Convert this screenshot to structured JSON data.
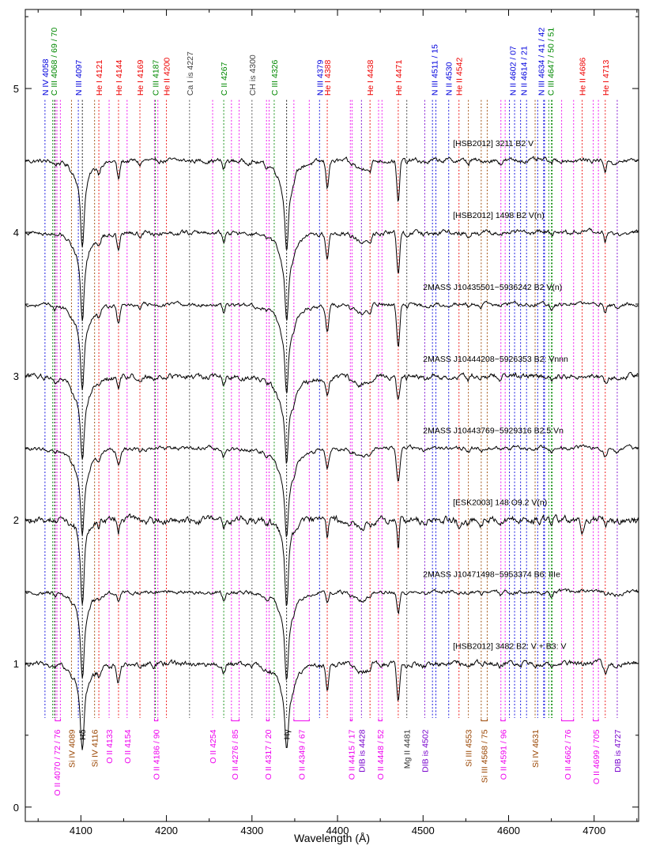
{
  "chart_data": {
    "type": "line",
    "title": "",
    "xlabel": "Wavelength (Å)",
    "ylabel": "",
    "xlim": [
      4035,
      4752
    ],
    "ylim": [
      -0.1,
      5.55
    ],
    "x_ticks": [
      4100,
      4200,
      4300,
      4400,
      4500,
      4600,
      4700
    ],
    "y_ticks": [
      0,
      1,
      2,
      3,
      4,
      5
    ],
    "grid": false,
    "colors": {
      "N": "#0000dd",
      "C": "#008800",
      "He": "#ee0000",
      "OII": "#ee00ee",
      "Si": "#994400",
      "Mg": "#333333",
      "DIB": "#7700cc",
      "other": "#444444",
      "H": "#000000",
      "spectrum": "#000000"
    },
    "top_lines": [
      {
        "label": "N IV 4058",
        "x": 4058,
        "el": "N"
      },
      {
        "label": "C III 4068 / 69 / 70",
        "x": 4068.5,
        "el": "C",
        "marks": [
          4067,
          4069,
          4070
        ]
      },
      {
        "label": "N III 4097",
        "x": 4097,
        "el": "N"
      },
      {
        "label": "He I 4121",
        "x": 4121,
        "el": "He"
      },
      {
        "label": "He I 4144",
        "x": 4144,
        "el": "He"
      },
      {
        "label": "He I 4169",
        "x": 4169,
        "el": "He"
      },
      {
        "label": "C III 4187",
        "x": 4187,
        "el": "C"
      },
      {
        "label": "He II 4200",
        "x": 4200,
        "el": "He"
      },
      {
        "label": "Ca I is 4227",
        "x": 4227,
        "el": "other"
      },
      {
        "label": "C II 4267",
        "x": 4267,
        "el": "C"
      },
      {
        "label": "CH is 4300",
        "x": 4300,
        "el": "other"
      },
      {
        "label": "C III 4326",
        "x": 4326,
        "el": "C"
      },
      {
        "label": "N III 4379",
        "x": 4379,
        "el": "N"
      },
      {
        "label": "He I 4388",
        "x": 4388,
        "el": "He"
      },
      {
        "label": "He I 4438",
        "x": 4438,
        "el": "He"
      },
      {
        "label": "He I 4471",
        "x": 4471,
        "el": "He"
      },
      {
        "label": "N III 4511 / 15",
        "x": 4513,
        "el": "N",
        "marks": [
          4511,
          4515
        ]
      },
      {
        "label": "N II 4530",
        "x": 4530,
        "el": "N"
      },
      {
        "label": "He II 4542",
        "x": 4542,
        "el": "He"
      },
      {
        "label": "N II 4602 / 07",
        "x": 4604.5,
        "el": "N",
        "marks": [
          4601,
          4607
        ]
      },
      {
        "label": "N II 4614 / 21",
        "x": 4617.5,
        "el": "N",
        "marks": [
          4614,
          4621
        ]
      },
      {
        "label": "N III 4634 / 41 / 42",
        "x": 4638,
        "el": "N",
        "marks": [
          4634,
          4641,
          4642
        ]
      },
      {
        "label": "C III 4647 / 50 / 51",
        "x": 4649,
        "el": "C",
        "marks": [
          4647,
          4650,
          4651
        ]
      },
      {
        "label": "He II 4686",
        "x": 4686,
        "el": "He"
      },
      {
        "label": "He I 4713",
        "x": 4713,
        "el": "He"
      }
    ],
    "bottom_lines": [
      {
        "label": "O II 4070 / 72 / 76",
        "x": 4072,
        "el": "OII",
        "marks": [
          4070,
          4072,
          4076
        ]
      },
      {
        "label": "Si IV 4089",
        "x": 4089,
        "el": "Si"
      },
      {
        "label": "Hδ",
        "x": 4101.7,
        "el": "H"
      },
      {
        "label": "Si IV 4116",
        "x": 4116,
        "el": "Si"
      },
      {
        "label": "O II 4133",
        "x": 4133,
        "el": "OII"
      },
      {
        "label": "O II 4154",
        "x": 4154,
        "el": "OII"
      },
      {
        "label": "O II 4186 / 90",
        "x": 4188,
        "el": "OII",
        "marks": [
          4186,
          4190
        ]
      },
      {
        "label": "O II 4254",
        "x": 4254,
        "el": "OII"
      },
      {
        "label": "O II 4276 / 85",
        "x": 4280,
        "el": "OII",
        "marks": [
          4276,
          4285
        ]
      },
      {
        "label": "O II 4317 / 20",
        "x": 4318.5,
        "el": "OII",
        "marks": [
          4317,
          4320
        ]
      },
      {
        "label": "Hγ",
        "x": 4340.5,
        "el": "H"
      },
      {
        "label": "O II 4349 / 67",
        "x": 4358,
        "el": "OII",
        "marks": [
          4349,
          4367
        ]
      },
      {
        "label": "O II 4415 / 17",
        "x": 4416,
        "el": "OII",
        "marks": [
          4415,
          4417
        ]
      },
      {
        "label": "DIB is 4428",
        "x": 4428,
        "el": "DIB"
      },
      {
        "label": "O II 4448 / 52",
        "x": 4450,
        "el": "OII",
        "marks": [
          4448,
          4452
        ]
      },
      {
        "label": "Mg II 4481",
        "x": 4481,
        "el": "Mg"
      },
      {
        "label": "DIB is 4502",
        "x": 4502,
        "el": "DIB"
      },
      {
        "label": "Si III 4553",
        "x": 4553,
        "el": "Si"
      },
      {
        "label": "Si III 4568 / 75",
        "x": 4571.5,
        "el": "Si",
        "marks": [
          4568,
          4575
        ]
      },
      {
        "label": "O II 4591 / 96",
        "x": 4593.5,
        "el": "OII",
        "marks": [
          4591,
          4596
        ]
      },
      {
        "label": "Si IV 4631",
        "x": 4631,
        "el": "Si"
      },
      {
        "label": "O II 4662 / 76",
        "x": 4669,
        "el": "OII",
        "marks": [
          4662,
          4676
        ]
      },
      {
        "label": "O II 4699 / 705",
        "x": 4702,
        "el": "OII",
        "marks": [
          4699,
          4705
        ]
      },
      {
        "label": "DIB is 4727",
        "x": 4727,
        "el": "DIB"
      }
    ],
    "series": [
      {
        "name": "[HSB2012] 3211   B2 V",
        "offset": 4.5,
        "label_x": 4535,
        "label_y": 4.6,
        "hwidth": 0.9,
        "heline": 1.0,
        "heii": 0.0,
        "noise": 0.012
      },
      {
        "name": "[HSB2012] 1498   B2 V(n)",
        "offset": 4.0,
        "label_x": 4535,
        "label_y": 4.1,
        "hwidth": 1.0,
        "heline": 1.0,
        "heii": 0.0,
        "noise": 0.012
      },
      {
        "name": "2MASS J10435501−5936242   B2 V(n)",
        "offset": 3.5,
        "label_x": 4500,
        "label_y": 3.6,
        "hwidth": 1.0,
        "heline": 1.0,
        "heii": 0.0,
        "noise": 0.01
      },
      {
        "name": "2MASS J10444208−5926353   B2: Vnnn",
        "offset": 3.0,
        "label_x": 4500,
        "label_y": 3.1,
        "hwidth": 1.1,
        "heline": 0.6,
        "heii": 0.0,
        "noise": 0.014
      },
      {
        "name": "2MASS J10443769−5929316   B2.5 Vn",
        "offset": 2.5,
        "label_x": 4500,
        "label_y": 2.6,
        "hwidth": 1.15,
        "heline": 0.8,
        "heii": 0.0,
        "noise": 0.01
      },
      {
        "name": "[ESK2003] 148   O9.2 V(n)",
        "offset": 2.0,
        "label_x": 4535,
        "label_y": 2.1,
        "hwidth": 0.6,
        "heline": 0.7,
        "heii": 1.0,
        "noise": 0.018
      },
      {
        "name": "2MASS J10471498−5953374   B6: IIIe",
        "offset": 1.5,
        "label_x": 4500,
        "label_y": 1.6,
        "hwidth": 0.9,
        "heline": 0.5,
        "heii": 0.0,
        "noise": 0.01
      },
      {
        "name": "[HSB2012] 3482   B2: V + B3: V",
        "offset": 1.0,
        "label_x": 4535,
        "label_y": 1.1,
        "hwidth": 1.0,
        "heline": 0.9,
        "heii": 0.0,
        "noise": 0.014
      }
    ]
  }
}
